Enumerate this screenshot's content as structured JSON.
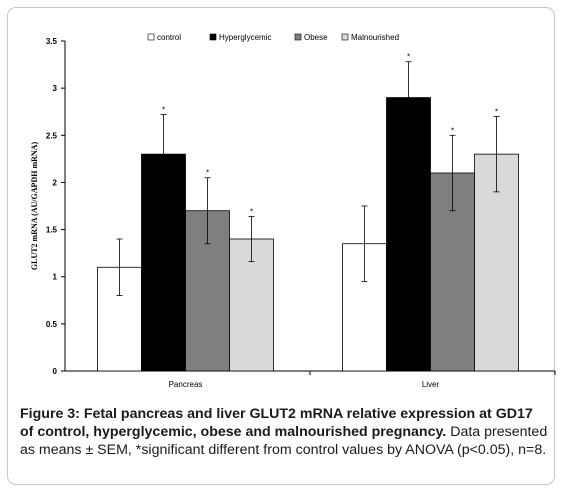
{
  "chart_data": {
    "type": "bar",
    "categories": [
      "Pancreas",
      "Liver"
    ],
    "series": [
      {
        "name": "control",
        "values": [
          1.1,
          1.35
        ],
        "errors": [
          0.3,
          0.4
        ],
        "color": "#ffffff",
        "significant": [
          false,
          false
        ]
      },
      {
        "name": "Hyperglycemic",
        "values": [
          2.3,
          2.9
        ],
        "errors": [
          0.42,
          0.38
        ],
        "color": "#000000",
        "significant": [
          true,
          true
        ]
      },
      {
        "name": "Obese",
        "values": [
          1.7,
          2.1
        ],
        "errors": [
          0.35,
          0.4
        ],
        "color": "#7f7f7f",
        "significant": [
          true,
          true
        ]
      },
      {
        "name": "Malnourished",
        "values": [
          1.4,
          2.3
        ],
        "errors": [
          0.24,
          0.4
        ],
        "color": "#d9d9d9",
        "significant": [
          true,
          true
        ]
      }
    ],
    "ylabel": "GLUT2 mRNA (AU/GAPDH mRNA)",
    "ylim": [
      0,
      3.5
    ],
    "yticks": [
      "0",
      "0.5",
      "1",
      "1.5",
      "2",
      "2.5",
      "3",
      "3.5"
    ],
    "significance_marker": "*",
    "legend_position": "top",
    "grid": false
  },
  "caption": {
    "bold": "Figure 3: Fetal pancreas and liver GLUT2 mRNA relative expression at GD17 of control, hyperglycemic, obese and malnourished pregnancy.",
    "text": " Data presented as means ± SEM, *significant different from control values by ANOVA (p<0.05), n=8."
  }
}
